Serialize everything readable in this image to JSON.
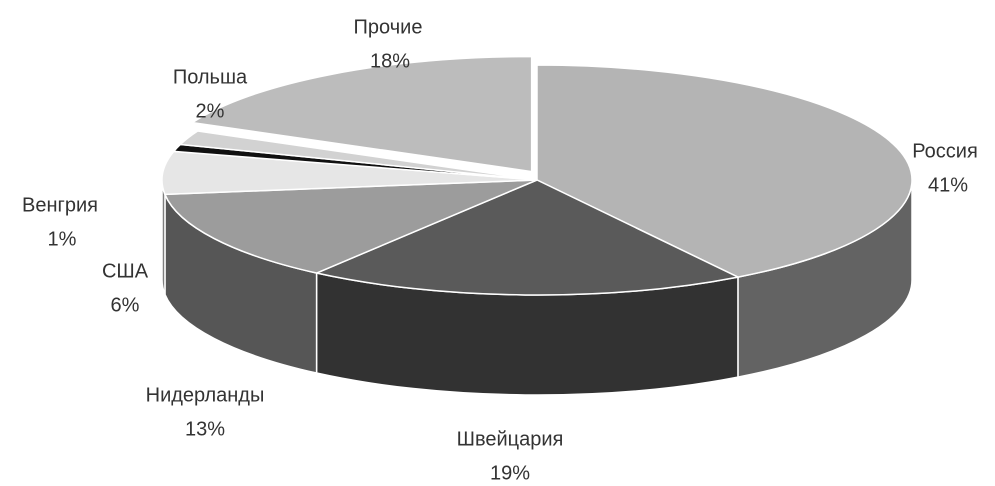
{
  "chart_data": {
    "type": "pie",
    "categories": [
      "Россия",
      "Швейцария",
      "Нидерланды",
      "США",
      "Венгрия",
      "Польша",
      "Прочие"
    ],
    "values": [
      41,
      19,
      13,
      6,
      1,
      2,
      18
    ],
    "value_labels": [
      "41%",
      "19%",
      "13%",
      "6%",
      "1%",
      "2%",
      "18%"
    ],
    "colors": [
      "#b4b4b4",
      "#5a5a5a",
      "#9c9c9c",
      "#e6e6e6",
      "#111111",
      "#d2d2d2",
      "#bcbcbc"
    ]
  }
}
